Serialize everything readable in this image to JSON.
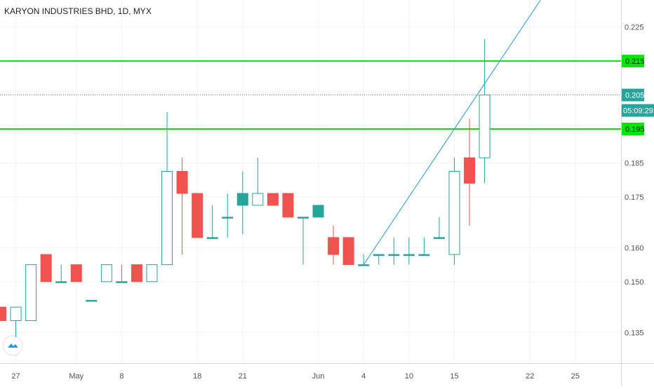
{
  "chart_data": {
    "type": "candlestick",
    "title": "KARYON INDUSTRIES BHD, 1D, MYX",
    "ylim": [
      0.126,
      0.233
    ],
    "y_ticks": [
      "0.135",
      "0.150",
      "0.160",
      "0.175",
      "0.185",
      "0.215",
      "0.225"
    ],
    "x_ticks": [
      {
        "label": "27",
        "idx": 1
      },
      {
        "label": "May",
        "idx": 5
      },
      {
        "label": "8",
        "idx": 8
      },
      {
        "label": "18",
        "idx": 13
      },
      {
        "label": "21",
        "idx": 16
      },
      {
        "label": "Jun",
        "idx": 21
      },
      {
        "label": "4",
        "idx": 24
      },
      {
        "label": "10",
        "idx": 27
      },
      {
        "label": "15",
        "idx": 30
      },
      {
        "label": "22",
        "idx": 35
      },
      {
        "label": "25",
        "idx": 38
      }
    ],
    "candles": [
      {
        "idx": 0,
        "open": 0.1425,
        "high": 0.1425,
        "low": 0.1385,
        "close": 0.1385
      },
      {
        "idx": 1,
        "open": 0.1385,
        "high": 0.1425,
        "low": 0.1335,
        "close": 0.1425
      },
      {
        "idx": 2,
        "open": 0.1385,
        "high": 0.155,
        "low": 0.1385,
        "close": 0.155
      },
      {
        "idx": 3,
        "open": 0.158,
        "high": 0.158,
        "low": 0.15,
        "close": 0.15
      },
      {
        "idx": 4,
        "open": 0.15,
        "high": 0.155,
        "low": 0.15,
        "close": 0.15
      },
      {
        "idx": 5,
        "open": 0.155,
        "high": 0.155,
        "low": 0.15,
        "close": 0.15
      },
      {
        "idx": 6,
        "open": 0.1445,
        "high": 0.1445,
        "low": 0.1445,
        "close": 0.1445
      },
      {
        "idx": 7,
        "open": 0.15,
        "high": 0.155,
        "low": 0.15,
        "close": 0.155
      },
      {
        "idx": 8,
        "open": 0.15,
        "high": 0.155,
        "low": 0.15,
        "close": 0.15
      },
      {
        "idx": 9,
        "open": 0.155,
        "high": 0.155,
        "low": 0.15,
        "close": 0.15
      },
      {
        "idx": 10,
        "open": 0.15,
        "high": 0.155,
        "low": 0.15,
        "close": 0.155
      },
      {
        "idx": 11,
        "open": 0.155,
        "high": 0.2,
        "low": 0.155,
        "close": 0.1825
      },
      {
        "idx": 12,
        "open": 0.1825,
        "high": 0.1865,
        "low": 0.158,
        "close": 0.176
      },
      {
        "idx": 13,
        "open": 0.176,
        "high": 0.176,
        "low": 0.163,
        "close": 0.163
      },
      {
        "idx": 14,
        "open": 0.163,
        "high": 0.1725,
        "low": 0.163,
        "close": 0.163
      },
      {
        "idx": 15,
        "open": 0.169,
        "high": 0.176,
        "low": 0.163,
        "close": 0.169
      },
      {
        "idx": 16,
        "open": 0.1725,
        "high": 0.1825,
        "low": 0.164,
        "close": 0.176
      },
      {
        "idx": 17,
        "open": 0.1725,
        "high": 0.1865,
        "low": 0.1725,
        "close": 0.176
      },
      {
        "idx": 18,
        "open": 0.176,
        "high": 0.176,
        "low": 0.1725,
        "close": 0.1725
      },
      {
        "idx": 19,
        "open": 0.176,
        "high": 0.176,
        "low": 0.169,
        "close": 0.169
      },
      {
        "idx": 20,
        "open": 0.169,
        "high": 0.169,
        "low": 0.155,
        "close": 0.169
      },
      {
        "idx": 21,
        "open": 0.169,
        "high": 0.1725,
        "low": 0.169,
        "close": 0.1725
      },
      {
        "idx": 22,
        "open": 0.163,
        "high": 0.1665,
        "low": 0.155,
        "close": 0.158
      },
      {
        "idx": 23,
        "open": 0.163,
        "high": 0.163,
        "low": 0.155,
        "close": 0.155
      },
      {
        "idx": 24,
        "open": 0.155,
        "high": 0.158,
        "low": 0.155,
        "close": 0.155
      },
      {
        "idx": 25,
        "open": 0.158,
        "high": 0.158,
        "low": 0.155,
        "close": 0.158
      },
      {
        "idx": 26,
        "open": 0.158,
        "high": 0.163,
        "low": 0.155,
        "close": 0.158
      },
      {
        "idx": 27,
        "open": 0.158,
        "high": 0.163,
        "low": 0.155,
        "close": 0.158
      },
      {
        "idx": 28,
        "open": 0.158,
        "high": 0.163,
        "low": 0.158,
        "close": 0.158
      },
      {
        "idx": 29,
        "open": 0.163,
        "high": 0.169,
        "low": 0.163,
        "close": 0.163
      },
      {
        "idx": 30,
        "open": 0.158,
        "high": 0.1865,
        "low": 0.155,
        "close": 0.1825
      },
      {
        "idx": 31,
        "open": 0.1865,
        "high": 0.198,
        "low": 0.1665,
        "close": 0.179
      },
      {
        "idx": 32,
        "open": 0.1865,
        "high": 0.2215,
        "low": 0.179,
        "close": 0.205
      }
    ],
    "horizontal_lines": [
      {
        "price": 0.215,
        "label": "0.215",
        "color": "#00e600",
        "style": "solid"
      },
      {
        "price": 0.205,
        "label": "0.205",
        "color": "#26a69a",
        "style": "dotted"
      },
      {
        "price": 0.195,
        "label": "0.195",
        "color": "#00e600",
        "style": "solid"
      }
    ],
    "trendline": {
      "from": {
        "idx": 24,
        "price": 0.155
      },
      "to": {
        "idx": 35.7,
        "price": 0.233
      },
      "color": "#2196f3"
    },
    "countdown": "05:09:29",
    "colors": {
      "up": "#26a69a",
      "down": "#ef5350",
      "grid": "#f0f3fa",
      "axis_text": "#4c525e"
    }
  }
}
